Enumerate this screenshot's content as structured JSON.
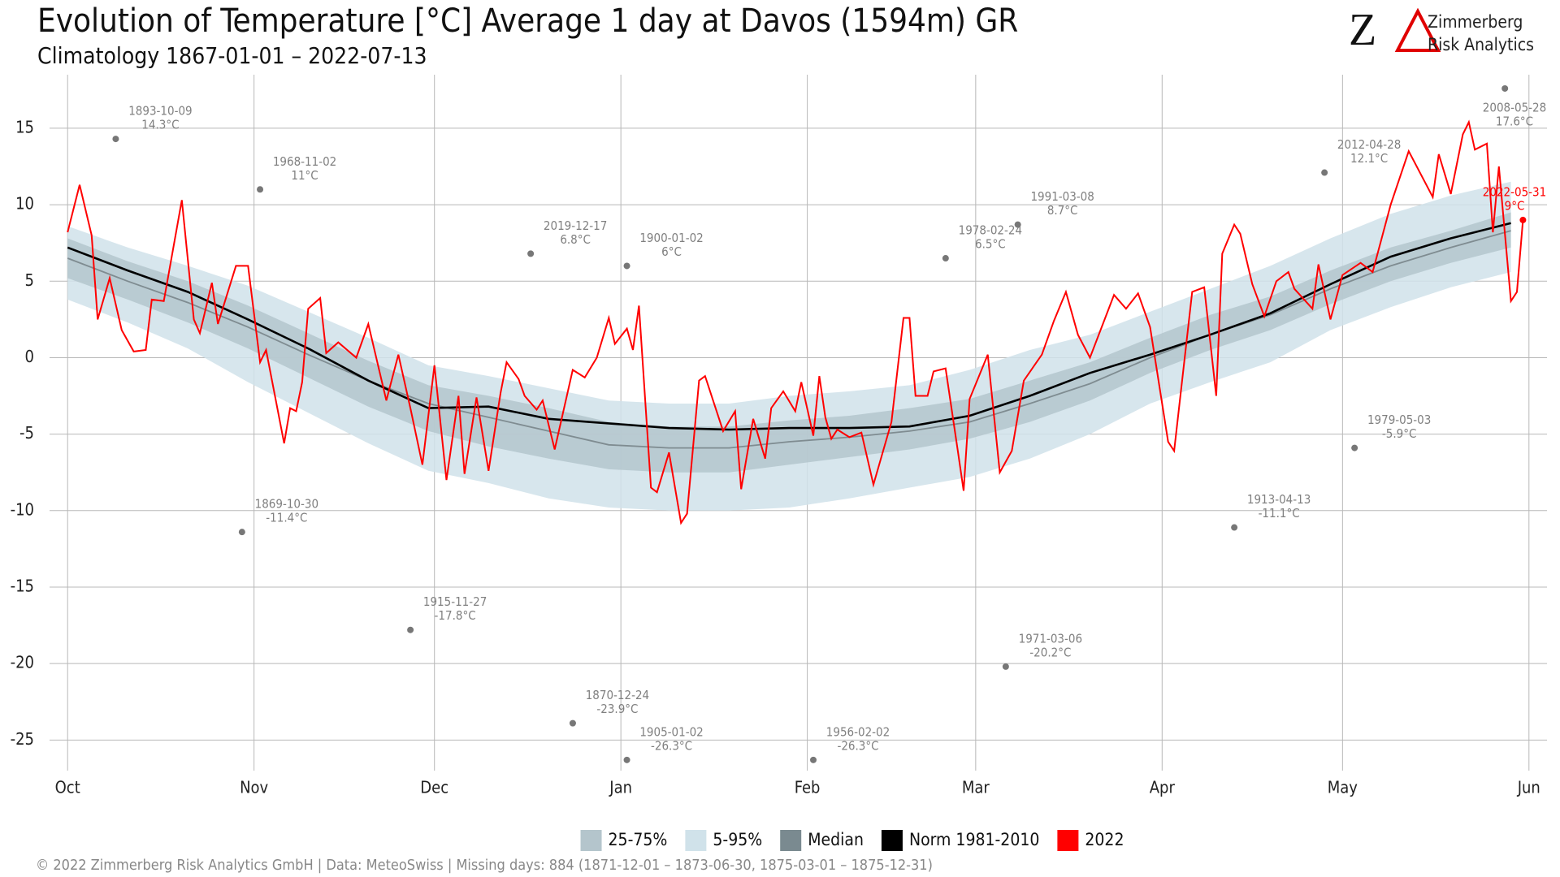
{
  "chart_data": {
    "type": "climatology",
    "title": "Evolution of Temperature [°C] Average 1 day at Davos (1594m) GR",
    "subtitle": "Climatology 1867-01-01 – 2022-07-13",
    "logo": {
      "mark": "Z",
      "line1": "Zimmerberg",
      "line2": "Risk Analytics"
    },
    "footer": "©  2022 Zimmerberg Risk Analytics GmbH | Data: MeteoSwiss | Missing days: 884 (1871-12-01 – 1873-06-30, 1875-03-01 – 1875-12-31)",
    "xlim": [
      -3,
      246
    ],
    "xticks": [
      {
        "value": 0,
        "label": "Oct"
      },
      {
        "value": 31,
        "label": "Nov"
      },
      {
        "value": 61,
        "label": "Dec"
      },
      {
        "value": 92,
        "label": "Jan"
      },
      {
        "value": 123,
        "label": "Feb"
      },
      {
        "value": 151,
        "label": "Mar"
      },
      {
        "value": 182,
        "label": "Apr"
      },
      {
        "value": 212,
        "label": "May"
      },
      {
        "value": 243,
        "label": "Jun"
      }
    ],
    "ylim": [
      -27,
      18.5
    ],
    "yticks": [
      -25,
      -20,
      -15,
      -10,
      -5,
      0,
      5,
      10,
      15
    ],
    "grid": true,
    "x": [
      0,
      10,
      20,
      30,
      40,
      50,
      60,
      70,
      80,
      90,
      100,
      110,
      120,
      130,
      140,
      150,
      160,
      170,
      180,
      190,
      200,
      210,
      220,
      230,
      240
    ],
    "series": [
      {
        "name": "25-75%",
        "kind": "band",
        "color": "#b4c5cc",
        "lower": [
          5.2,
          3.8,
          2.3,
          0.6,
          -1.3,
          -3.2,
          -4.8,
          -5.8,
          -6.6,
          -7.3,
          -7.5,
          -7.5,
          -7.0,
          -6.5,
          -6.0,
          -5.3,
          -4.2,
          -2.8,
          -1.0,
          0.5,
          1.8,
          3.5,
          5.0,
          6.2,
          7.2
        ],
        "upper": [
          7.8,
          6.3,
          5.0,
          3.4,
          1.6,
          -0.2,
          -1.8,
          -2.5,
          -3.3,
          -4.2,
          -4.5,
          -4.5,
          -4.1,
          -3.8,
          -3.3,
          -2.7,
          -1.5,
          -0.3,
          1.3,
          2.8,
          4.0,
          5.7,
          7.2,
          8.3,
          9.5
        ]
      },
      {
        "name": "5-95%",
        "kind": "band",
        "color": "#d0e2ea",
        "lower": [
          3.8,
          2.3,
          0.6,
          -1.6,
          -3.6,
          -5.6,
          -7.4,
          -8.2,
          -9.2,
          -9.8,
          -10.0,
          -10.0,
          -9.8,
          -9.2,
          -8.5,
          -7.8,
          -6.6,
          -5.0,
          -3.0,
          -1.6,
          -0.3,
          1.8,
          3.3,
          4.6,
          5.6
        ],
        "upper": [
          8.6,
          7.2,
          6.0,
          4.7,
          3.0,
          1.3,
          -0.5,
          -1.2,
          -2.0,
          -2.8,
          -3.0,
          -3.0,
          -2.5,
          -2.2,
          -1.8,
          -0.8,
          0.5,
          1.5,
          3.0,
          4.5,
          6.0,
          7.8,
          9.4,
          10.6,
          11.5
        ]
      },
      {
        "name": "Median",
        "kind": "line",
        "color": "#7f8c91",
        "values": [
          6.5,
          5.0,
          3.6,
          2.0,
          0.2,
          -1.5,
          -3.0,
          -3.9,
          -4.8,
          -5.7,
          -5.9,
          -5.9,
          -5.5,
          -5.2,
          -4.8,
          -4.2,
          -3.0,
          -1.7,
          0.0,
          1.5,
          2.8,
          4.5,
          6.0,
          7.2,
          8.3
        ]
      },
      {
        "name": "Norm 1981-2010",
        "kind": "line",
        "color": "#000000",
        "values": [
          7.2,
          5.7,
          4.3,
          2.5,
          0.6,
          -1.5,
          -3.3,
          -3.2,
          -4.0,
          -4.3,
          -4.6,
          -4.7,
          -4.6,
          -4.6,
          -4.5,
          -3.8,
          -2.5,
          -1.0,
          0.2,
          1.5,
          2.9,
          4.8,
          6.6,
          7.8,
          8.8
        ]
      },
      {
        "name": "2022",
        "kind": "own",
        "color": "#ff0000",
        "x": [
          0,
          2,
          4,
          5,
          7,
          9,
          11,
          13,
          14,
          16,
          19,
          21,
          22,
          24,
          25,
          28,
          30,
          32,
          33,
          36,
          37,
          38,
          39,
          40,
          42,
          43,
          45,
          48,
          50,
          53,
          55,
          57,
          59,
          61,
          63,
          65,
          66,
          68,
          70,
          72,
          73,
          75,
          76,
          78,
          79,
          81,
          84,
          86,
          88,
          90,
          91,
          93,
          94,
          95,
          97,
          98,
          100,
          102,
          103,
          105,
          106,
          109,
          111,
          112,
          114,
          116,
          117,
          119,
          121,
          122,
          124,
          125,
          126,
          127,
          128,
          130,
          132,
          134,
          137,
          139,
          140,
          141,
          143,
          144,
          146,
          148,
          149,
          150,
          153,
          155,
          157,
          159,
          162,
          164,
          166,
          168,
          170,
          174,
          176,
          178,
          180,
          183,
          184,
          187,
          189,
          191,
          192,
          194,
          195,
          197,
          199,
          201,
          203,
          204,
          207,
          208,
          210,
          212,
          215,
          217,
          220,
          223,
          227,
          228,
          230,
          232,
          233,
          234,
          236,
          237,
          238,
          240,
          241,
          242
        ],
        "values": [
          8.2,
          11.3,
          8,
          2.5,
          5.2,
          1.8,
          0.4,
          0.5,
          3.8,
          3.7,
          10.3,
          2.5,
          1.6,
          4.9,
          2.2,
          6,
          6,
          -0.3,
          0.5,
          -5.6,
          -3.3,
          -3.5,
          -1.6,
          3.2,
          3.9,
          0.3,
          1,
          0,
          2.2,
          -2.8,
          0.2,
          -3.3,
          -7,
          -0.5,
          -8,
          -2.5,
          -7.6,
          -2.6,
          -7.4,
          -2.3,
          -0.3,
          -1.4,
          -2.5,
          -3.4,
          -2.8,
          -6,
          -0.8,
          -1.3,
          0,
          2.6,
          0.9,
          1.9,
          0.5,
          3.4,
          -8.5,
          -8.8,
          -6.2,
          -10.8,
          -10.2,
          -1.5,
          -1.2,
          -4.8,
          -3.5,
          -8.6,
          -4,
          -6.6,
          -3.3,
          -2.2,
          -3.5,
          -1.6,
          -5.1,
          -1.2,
          -3.9,
          -5.3,
          -4.7,
          -5.2,
          -4.9,
          -8.3,
          -4.2,
          2.6,
          2.6,
          -2.5,
          -2.5,
          -0.9,
          -0.7,
          -6,
          -8.7,
          -2.7,
          0.2,
          -7.5,
          -6.1,
          -1.5,
          0.2,
          2.4,
          4.3,
          1.5,
          0,
          4.1,
          3.2,
          4.2,
          2,
          -5.5,
          -6.1,
          4.3,
          4.6,
          -2.5,
          6.8,
          8.7,
          8.1,
          4.8,
          2.7,
          5,
          5.6,
          4.5,
          3.2,
          6.1,
          2.5,
          5.4,
          6.2,
          5.6,
          10,
          13.5,
          10.5,
          13.3,
          10.7,
          14.6,
          15.4,
          13.6,
          14,
          8.2,
          12.5,
          3.7,
          4.3,
          9
        ]
      }
    ],
    "records": [
      {
        "date": "1893-10-09",
        "x": 8,
        "value": 14.3,
        "value_label": "14.3°C",
        "color": "#808080"
      },
      {
        "date": "1968-11-02",
        "x": 32,
        "value": 11,
        "value_label": "11°C",
        "color": "#808080"
      },
      {
        "date": "1869-10-30",
        "x": 29,
        "value": -11.4,
        "value_label": "-11.4°C",
        "color": "#808080"
      },
      {
        "date": "1915-11-27",
        "x": 57,
        "value": -17.8,
        "value_label": "-17.8°C",
        "color": "#808080"
      },
      {
        "date": "1870-12-24",
        "x": 84,
        "value": -23.9,
        "value_label": "-23.9°C",
        "color": "#808080"
      },
      {
        "date": "2019-12-17",
        "x": 77,
        "value": 6.8,
        "value_label": "6.8°C",
        "color": "#808080"
      },
      {
        "date": "1900-01-02",
        "x": 93,
        "value": 6,
        "value_label": "6°C",
        "color": "#808080"
      },
      {
        "date": "1905-01-02",
        "x": 93,
        "value": -26.3,
        "value_label": "-26.3°C",
        "color": "#808080"
      },
      {
        "date": "1956-02-02",
        "x": 124,
        "value": -26.3,
        "value_label": "-26.3°C",
        "color": "#808080"
      },
      {
        "date": "1978-02-24",
        "x": 146,
        "value": 6.5,
        "value_label": "6.5°C",
        "color": "#808080"
      },
      {
        "date": "1991-03-08",
        "x": 158,
        "value": 8.7,
        "value_label": "8.7°C",
        "color": "#808080"
      },
      {
        "date": "1971-03-06",
        "x": 156,
        "value": -20.2,
        "value_label": "-20.2°C",
        "color": "#808080"
      },
      {
        "date": "2012-04-28",
        "x": 209,
        "value": 12.1,
        "value_label": "12.1°C",
        "color": "#808080"
      },
      {
        "date": "1913-04-13",
        "x": 194,
        "value": -11.1,
        "value_label": "-11.1°C",
        "color": "#808080"
      },
      {
        "date": "1979-05-03",
        "x": 214,
        "value": -5.9,
        "value_label": "-5.9°C",
        "color": "#808080"
      },
      {
        "date": "2008-05-28",
        "x": 239,
        "value": 17.6,
        "value_label": "17.6°C",
        "color": "#808080"
      },
      {
        "date": "2022-05-31",
        "x": 242,
        "value": 9,
        "value_label": "9°C",
        "color": "#ff0000"
      }
    ]
  }
}
